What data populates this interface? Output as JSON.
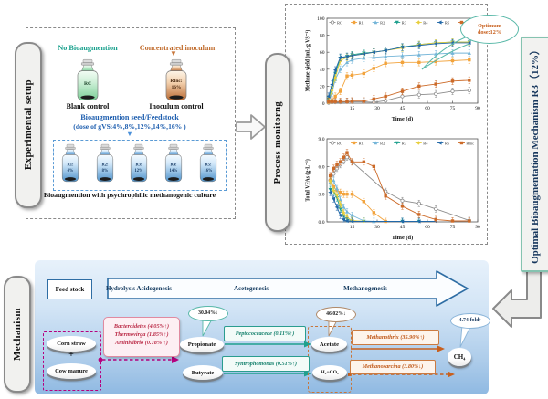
{
  "experimental_setup": {
    "label": "Experimental setup",
    "no_bioaug": {
      "header": "No Bioaugmention",
      "bottle": {
        "name": "RC",
        "dose": ""
      },
      "caption": "Blank control"
    },
    "inoculum": {
      "header": "Concentrated inoculum",
      "bottle": {
        "name": "RInc:",
        "dose": "16%"
      },
      "caption": "Inoculum control"
    },
    "seed_title": "Bioaugmention seed/Feedstock",
    "seed_subtitle": "(dose of gVS:4%,8%,12%,14%,16% )",
    "down_arrow": "▼",
    "bottles": [
      {
        "name": "R1:",
        "dose": "4%"
      },
      {
        "name": "R2:",
        "dose": "8%"
      },
      {
        "name": "R3:",
        "dose": "12%"
      },
      {
        "name": "R4:",
        "dose": "14%"
      },
      {
        "name": "R5:",
        "dose": "16%"
      }
    ],
    "bottom_caption": "Bioaugmention with psychrophilic methanogenic culture"
  },
  "process_monitoring": {
    "label": "Process monitorng",
    "optimum_callout_line1": "Optimum",
    "optimum_callout_line2": "dose:12%"
  },
  "right_banner": {
    "label": "Optimal Bioaugmentation Mechanism R3（12%）"
  },
  "mechanism": {
    "label": "Mechanism",
    "feedstock": "Feed stock",
    "stages": [
      "Hydrolysis Acidogenesis",
      "Acetogenesis",
      "Methanogenesis"
    ],
    "substrate_top": "Corn straw",
    "plus": "+",
    "substrate_bottom": "Cow manure",
    "hydrolysis_microbes": [
      "Bacteroidetes (4.05%↑)",
      "Thermovirga (1.85%↑)",
      "Aminivibrio (0.78% ↑)"
    ],
    "intermediate_top": "Propionate",
    "intermediate_bottom": "Butyrate",
    "propionate_callout": "30.04%↓",
    "acetogen_top": "Peptococcaceae (0.11%↑)",
    "acetogen_bottom": "Syntrophomonas (0.51%↑)",
    "acetate_callout": "46.02%↓",
    "methanogen_substrate_top": "Acetate",
    "methanogen_substrate_bottom": "H₂+CO₂",
    "methanogen_top": "Methanothrix (35.90%↑)",
    "methanogen_bottom": "Methanosarcina (3.80%↓)",
    "product": "CH₄",
    "product_callout": "4.74-fold↑"
  },
  "colors": {
    "teal_accent": "#2a9d8f",
    "orange_accent": "#c8601e",
    "blue_accent": "#2060b0",
    "magenta_accent": "#b5007e",
    "arrow_blue": "#2e6da4"
  },
  "chart_data": [
    {
      "type": "line",
      "title": "",
      "xlabel": "Time (d)",
      "ylabel": "Methane yield (mL·g VS⁻¹)",
      "xlim": [
        0,
        90
      ],
      "ylim": [
        0,
        100
      ],
      "x_ticks": [
        15,
        30,
        45,
        60,
        75,
        90
      ],
      "y_ticks": [
        0,
        20,
        40,
        60,
        80,
        100
      ],
      "y_tick_labels": [
        "0",
        "20",
        "40",
        "60",
        "80",
        "100"
      ],
      "legend_position": "top",
      "grid": false,
      "err": 4,
      "x": [
        1,
        3,
        5,
        8,
        12,
        15,
        22,
        28,
        35,
        45,
        55,
        65,
        75,
        85
      ],
      "series": [
        {
          "name": "RC",
          "color": "#8c8c8c",
          "marker": "circle",
          "values": [
            0.5,
            1,
            1,
            1,
            1.5,
            1.5,
            1.5,
            1,
            3,
            8,
            10,
            11,
            14,
            15
          ]
        },
        {
          "name": "R1",
          "color": "#f2a33c",
          "marker": "square",
          "values": [
            1,
            3,
            8,
            14,
            32,
            33,
            35,
            41,
            47,
            48,
            48,
            49,
            50,
            51
          ]
        },
        {
          "name": "R2",
          "color": "#74b5d8",
          "marker": "triangle-up",
          "values": [
            2,
            12,
            28,
            40,
            48,
            51,
            53,
            54,
            55,
            56,
            57,
            58,
            59,
            59
          ]
        },
        {
          "name": "R3",
          "color": "#1fa08e",
          "marker": "triangle-down",
          "values": [
            5,
            18,
            35,
            53,
            55,
            57,
            59,
            60,
            62,
            66,
            69,
            71,
            72,
            72
          ]
        },
        {
          "name": "R4",
          "color": "#e8cf3e",
          "marker": "diamond",
          "values": [
            3,
            15,
            30,
            50,
            54,
            56,
            58,
            60,
            62,
            65,
            69,
            71,
            72,
            72
          ]
        },
        {
          "name": "R5",
          "color": "#2268a8",
          "marker": "triangle-left",
          "values": [
            8,
            22,
            39,
            54,
            55,
            56,
            58,
            60,
            62,
            66,
            68,
            70,
            71,
            71
          ]
        },
        {
          "name": "RInc",
          "color": "#cc6a28",
          "marker": "square",
          "values": [
            2,
            2,
            2,
            2,
            2,
            2.5,
            2.5,
            5,
            8,
            14,
            20,
            22.5,
            26,
            27
          ]
        }
      ]
    },
    {
      "type": "line",
      "title": "",
      "xlabel": "Time (d)",
      "ylabel": "Total VFAs (g·L⁻¹)",
      "xlim": [
        0,
        90
      ],
      "ylim": [
        0,
        9
      ],
      "x_ticks": [
        15,
        30,
        45,
        60,
        75,
        90
      ],
      "y_ticks": [
        0,
        3,
        6,
        9
      ],
      "y_tick_labels": [
        "0.0",
        "3.0",
        "6.0",
        "9.0"
      ],
      "legend_position": "top",
      "grid": false,
      "err": 0.35,
      "x": [
        2,
        4,
        6,
        8,
        10,
        12,
        15,
        22,
        28,
        35,
        45,
        55,
        65,
        75,
        85
      ],
      "series": [
        {
          "name": "RC",
          "color": "#8c8c8c",
          "marker": "circle",
          "values": [
            4.5,
            5.2,
            5.8,
            6.2,
            6.6,
            7.0,
            6.5,
            null,
            null,
            3.3,
            2.3,
            2.0,
            1.4,
            null,
            0.15
          ]
        },
        {
          "name": "R1",
          "color": "#f2a33c",
          "marker": "square",
          "values": [
            4.5,
            3.8,
            3.4,
            3.2,
            3.0,
            3.0,
            3.0,
            2.2,
            1.0,
            0.05,
            null,
            null,
            null,
            null,
            null
          ]
        },
        {
          "name": "R2",
          "color": "#74b5d8",
          "marker": "triangle-up",
          "values": [
            4.3,
            4.5,
            3.6,
            2.4,
            1.6,
            1.1,
            0.7,
            0.1,
            0.05,
            null,
            null,
            null,
            null,
            null,
            null
          ]
        },
        {
          "name": "R3",
          "color": "#1fa08e",
          "marker": "triangle-down",
          "values": [
            3.5,
            3.3,
            2.6,
            1.4,
            0.6,
            0.3,
            0.1,
            0.05,
            null,
            null,
            0.05,
            0.05,
            null,
            null,
            null
          ]
        },
        {
          "name": "R4",
          "color": "#e8cf3e",
          "marker": "diamond",
          "values": [
            4.4,
            3.4,
            2.9,
            1.9,
            1.0,
            0.5,
            0.15,
            0.05,
            null,
            null,
            null,
            null,
            null,
            null,
            null
          ]
        },
        {
          "name": "R5",
          "color": "#2268a8",
          "marker": "triangle-left",
          "values": [
            3.2,
            2.5,
            1.6,
            0.7,
            0.25,
            0.1,
            0.05,
            null,
            null,
            null,
            0.05,
            0.05,
            0.05,
            null,
            null
          ]
        },
        {
          "name": "RInc",
          "color": "#cc6a28",
          "marker": "square",
          "values": [
            5.0,
            5.8,
            6.2,
            6.5,
            7.0,
            7.5,
            6.5,
            6.5,
            6.0,
            2.8,
            1.7,
            0.8,
            0.25,
            0.1,
            0.1
          ]
        }
      ]
    }
  ]
}
